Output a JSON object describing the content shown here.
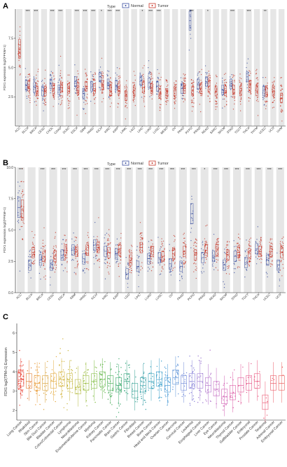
{
  "colors": {
    "normal": "#3a4fa0",
    "tumor": "#c8382a",
    "band": "#e6e6e6",
    "axis": "#222222"
  },
  "chart_data": [
    {
      "panel": "A",
      "type": "scatter",
      "legend_title": "Type",
      "legend": [
        "Normal",
        "Tumor"
      ],
      "legend_placement": "top",
      "ylabel": "FDX1 expression log2(FPKM+1)",
      "ylim": [
        0,
        10
      ],
      "yticks": [
        "2.5",
        "5.0",
        "7.5"
      ],
      "ytick_values": [
        2.5,
        5.0,
        7.5
      ],
      "grid": false,
      "categories": [
        "ACC",
        "BLCA",
        "BRCA",
        "CESC",
        "CHOL",
        "COAD",
        "DLBC",
        "ESCA",
        "GBM",
        "HNSC",
        "KICH",
        "KIRC",
        "KIRP",
        "LAML",
        "LGG",
        "LIHC",
        "LUAD",
        "LUSC",
        "MESO",
        "OV",
        "PAAD",
        "PCPG",
        "PRAD",
        "READ",
        "SARC",
        "SKCM",
        "STAD",
        "TGCT",
        "THCA",
        "THYM",
        "UCEC",
        "UCS",
        "UVM"
      ],
      "significance": [
        "",
        "***",
        "***",
        "",
        "***",
        "***",
        "",
        "***",
        "***",
        "***",
        "*",
        "***",
        "***",
        "",
        "",
        "*",
        "***",
        "***",
        "",
        "",
        "",
        "***",
        "",
        "*",
        "",
        "",
        "***",
        "",
        "***",
        "",
        "**",
        "",
        ""
      ],
      "normal_median": [
        null,
        3.5,
        3.3,
        3.0,
        3.6,
        3.1,
        null,
        3.8,
        2.8,
        3.4,
        4.2,
        3.6,
        3.5,
        null,
        null,
        3.9,
        3.7,
        3.4,
        null,
        null,
        3.2,
        9.0,
        3.6,
        3.8,
        null,
        3.1,
        3.6,
        null,
        4.2,
        null,
        3.0,
        null,
        null
      ],
      "tumor_median": [
        6.6,
        3.4,
        3.0,
        3.0,
        3.2,
        3.3,
        3.2,
        3.3,
        3.4,
        3.2,
        3.5,
        3.0,
        3.2,
        2.6,
        3.0,
        3.3,
        3.2,
        2.8,
        2.8,
        3.0,
        3.2,
        3.0,
        3.2,
        3.4,
        3.0,
        3.0,
        3.1,
        3.0,
        3.5,
        3.0,
        2.9,
        3.0,
        2.4
      ]
    },
    {
      "panel": "B",
      "type": "scatter",
      "legend_title": "Type",
      "legend": [
        "Normal",
        "Tumor"
      ],
      "legend_placement": "top",
      "ylabel": "FDX1 expression log2(FPKM+1)",
      "ylim": [
        0,
        10
      ],
      "yticks": [
        "0.0",
        "2.5",
        "5.0",
        "7.5",
        "10.0"
      ],
      "ytick_values": [
        0.0,
        2.5,
        5.0,
        7.5,
        10.0
      ],
      "grid": false,
      "categories": [
        "ACC",
        "BLCA",
        "BRCA",
        "CESC",
        "ESCA",
        "GBM",
        "HNSC",
        "KICH",
        "KIRC",
        "KIRP",
        "LGG",
        "LIHC",
        "LUAD",
        "LUSC",
        "OV",
        "PAAD",
        "PCPG",
        "PRAD",
        "READ",
        "SKCM",
        "STAD",
        "TGCT",
        "THCA",
        "UCEC",
        "UCS"
      ],
      "significance": [
        "***",
        "",
        "***",
        "***",
        "***",
        "***",
        "***",
        "***",
        "***",
        "***",
        "***",
        "***",
        "***",
        "***",
        "***",
        "***",
        "***",
        "*",
        "***",
        "***",
        "***",
        "***",
        "***",
        "***",
        "***"
      ],
      "normal_median": [
        6.8,
        2.2,
        2.6,
        2.2,
        3.0,
        3.4,
        2.7,
        3.8,
        3.3,
        3.1,
        1.5,
        2.1,
        2.7,
        2.8,
        2.3,
        2.1,
        6.3,
        2.8,
        2.9,
        2.2,
        2.9,
        2.4,
        3.5,
        2.6,
        2.2
      ],
      "tumor_median": [
        6.6,
        3.2,
        2.9,
        2.9,
        3.4,
        3.3,
        3.4,
        3.6,
        3.2,
        3.4,
        2.6,
        3.6,
        3.3,
        2.9,
        3.1,
        3.3,
        3.0,
        3.4,
        3.4,
        3.0,
        3.2,
        3.1,
        3.3,
        3.3,
        3.2
      ]
    },
    {
      "panel": "C",
      "type": "scatter",
      "ylabel": "FDX1 log2(TPM+1) Expression",
      "ylim": [
        1.5,
        6.5
      ],
      "yticks": [
        "2",
        "3",
        "4",
        "5",
        "6"
      ],
      "ytick_values": [
        2,
        3,
        4,
        5,
        6
      ],
      "grid": false,
      "categories": [
        "Lung Cancer",
        "Rhabdoid",
        "Skin Cancer",
        "Bile Duct Cancer",
        "Bladder Cancer",
        "Colon/Colorectal Cancer",
        "Lymphoma",
        "Neuroblastoma",
        "Endometrial/Uterine Cancer",
        "Myeloma",
        "Kidney Cancer",
        "Pancreatic Cancer",
        "Brain Cancer",
        "Gastric Cancer",
        "Fibroblast",
        "Breast Cancer",
        "Bone Cancer",
        "Head and Neck Cancer",
        "Ovarian Cancer",
        "Sarcoma",
        "Cervical Cancer",
        "Leukemia",
        "Esophageal Cancer",
        "Liver Cancer",
        "Eye Cancer",
        "Neuroblastoma",
        "Thyroid Cancer",
        "Gallbladder Cancer",
        "Embryonal",
        "Prostate Cancer",
        "Teratoma",
        "Adrenal Cancer",
        "Embryonal Cancer"
      ],
      "medians": [
        3.6,
        3.5,
        3.4,
        3.4,
        3.5,
        3.6,
        3.5,
        3.2,
        3.4,
        3.5,
        3.6,
        3.4,
        3.3,
        3.5,
        3.0,
        3.3,
        3.5,
        3.6,
        3.3,
        3.7,
        3.4,
        3.5,
        3.5,
        3.3,
        3.1,
        2.7,
        2.9,
        3.3,
        3.4,
        3.5,
        2.4,
        3.4,
        3.4
      ],
      "group_colors": [
        "#e8473b",
        "#e07a2f",
        "#e89a35",
        "#d9a23a",
        "#e3a93c",
        "#d4b33c",
        "#c7b73d",
        "#b4b93e",
        "#9abb3f",
        "#7fbc41",
        "#5eb443",
        "#47ad57",
        "#3aa86b",
        "#35a37f",
        "#34a093",
        "#349ea6",
        "#35a0b9",
        "#3a9fca",
        "#4597d4",
        "#5990d7",
        "#6e88d9",
        "#8781d8",
        "#9c79d2",
        "#b070ca",
        "#c267bf",
        "#d05fb3",
        "#db5aa5",
        "#e15797",
        "#e6568a",
        "#e9557d",
        "#ea5670",
        "#ea5763",
        "#e95a57"
      ]
    }
  ],
  "panel_labels": {
    "a": "A",
    "b": "B",
    "c": "C"
  }
}
